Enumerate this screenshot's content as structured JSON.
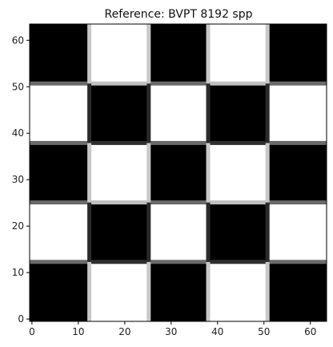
{
  "chart_data": {
    "type": "heatmap",
    "title": "Reference: BVPT 8192 spp",
    "xlabel": "",
    "ylabel": "",
    "xlim": [
      -0.5,
      63.5
    ],
    "ylim": [
      -0.5,
      63.5
    ],
    "x_ticks": [
      0,
      10,
      20,
      30,
      40,
      50,
      60
    ],
    "y_ticks": [
      0,
      10,
      20,
      30,
      40,
      50,
      60
    ],
    "grid": false,
    "colormap": "gray",
    "origin": "lower",
    "cell_size": 12.8,
    "checker_rows": 5,
    "checker_cols": 5,
    "bottom_left_color": "black",
    "boundary_shades": {
      "vertical": [
        {
          "x": 12.8,
          "left_of_black": "#2a2a2a",
          "left_of_white": "#c8c8c8"
        },
        {
          "x": 25.6,
          "left_of_black": "#c8c8c8",
          "left_of_white": "#2a2a2a"
        },
        {
          "x": 38.4,
          "left_of_black": "#2a2a2a",
          "left_of_white": "#c8c8c8"
        },
        {
          "x": 51.2,
          "left_of_black": "#c8c8c8",
          "left_of_white": "#2a2a2a"
        }
      ],
      "horizontal_shade": "#6a6a6a",
      "horizontal_light": "#c0c0c0",
      "horizontal_dark": "#2e2e2e"
    }
  }
}
